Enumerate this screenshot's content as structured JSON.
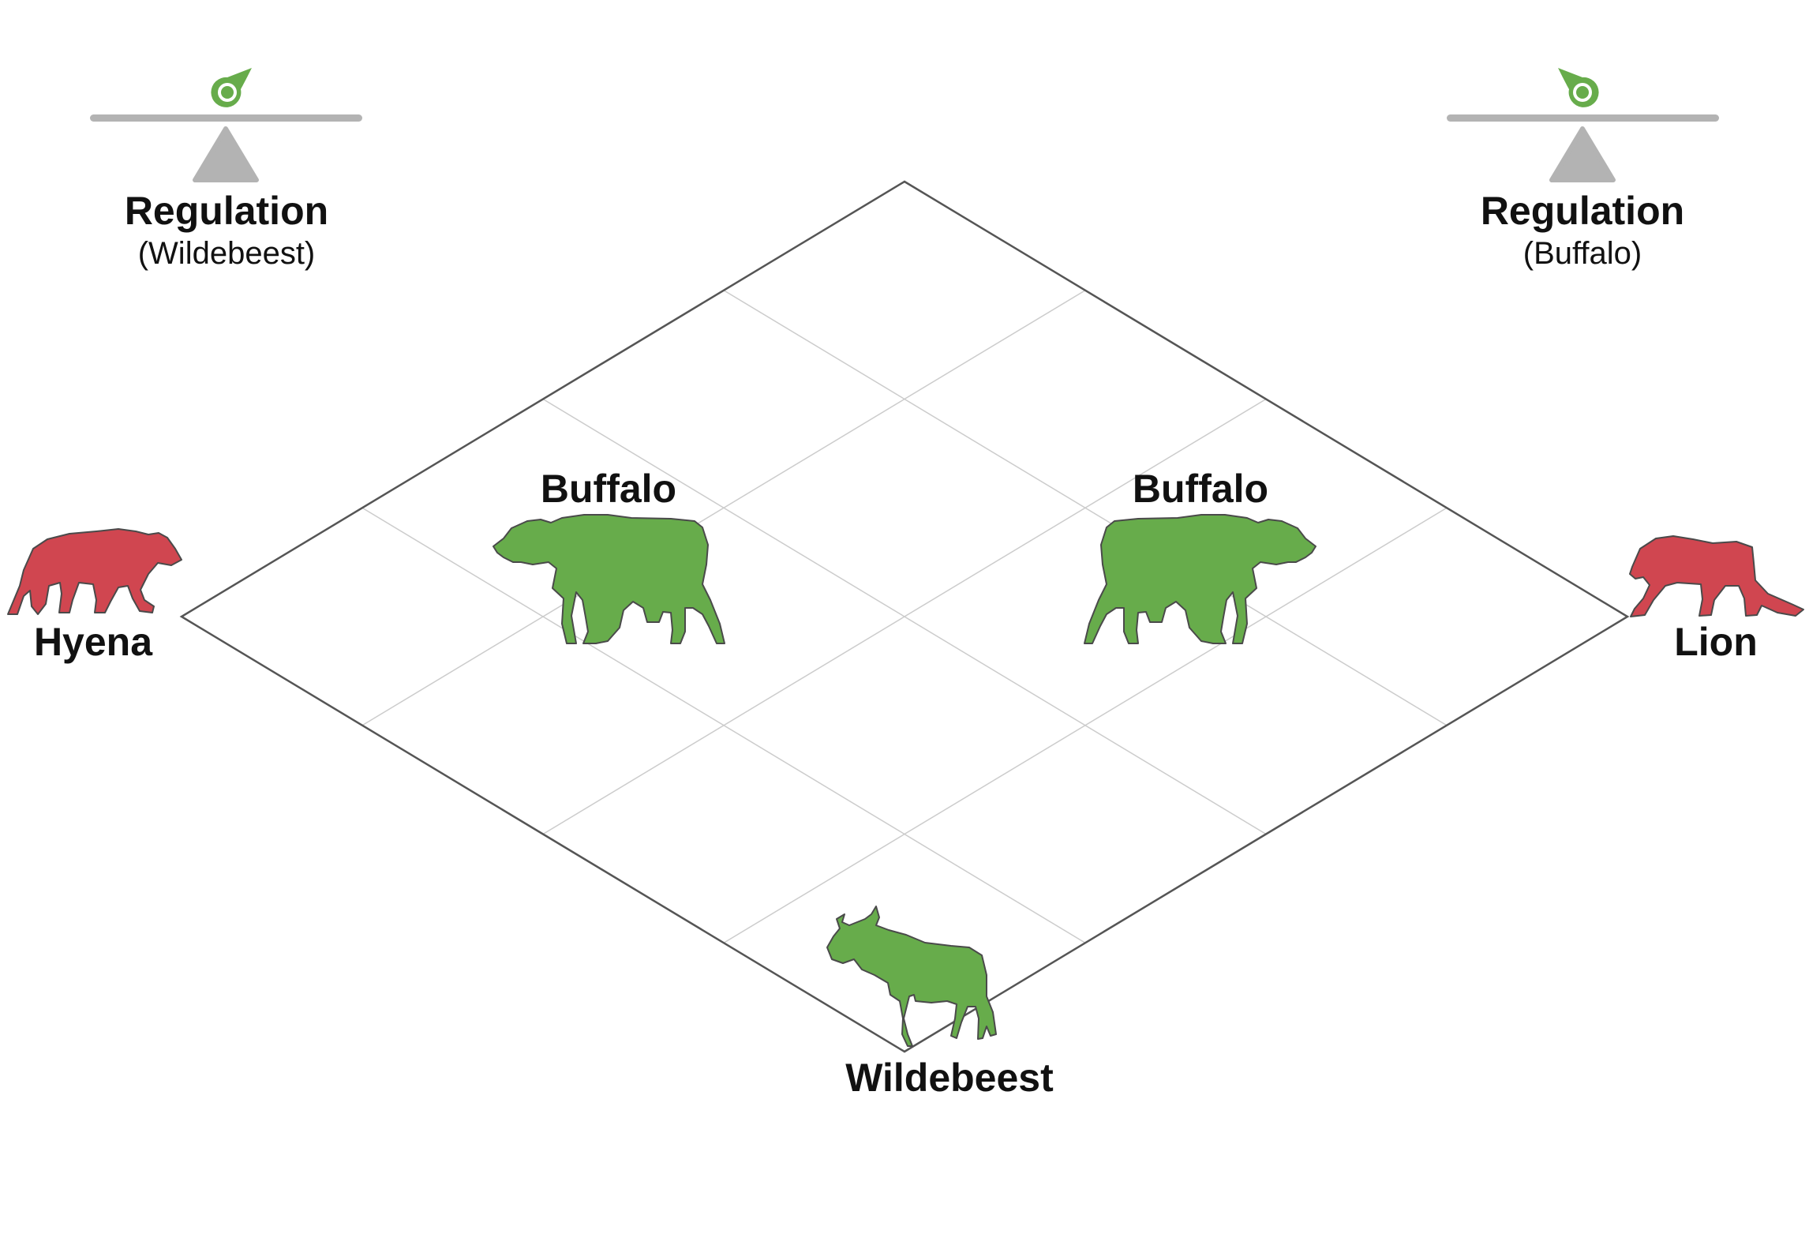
{
  "colors": {
    "predator": "#d04650",
    "prey": "#67ac4b",
    "silhouette_outline": "#4a4a4a",
    "balance": "#b3b3b3",
    "frame": "#555555",
    "grid": "#cccccc",
    "label": "#111111"
  },
  "regulation_left": {
    "title": "Regulation",
    "subtitle": "(Wildebeest)",
    "icon": "balance-scale-icon"
  },
  "regulation_right": {
    "title": "Regulation",
    "subtitle": "(Buffalo)",
    "icon": "balance-scale-icon"
  },
  "nodes": {
    "left": {
      "label": "Hyena",
      "icon": "hyena-icon",
      "role": "predator"
    },
    "right": {
      "label": "Lion",
      "icon": "lion-icon",
      "role": "predator"
    },
    "bottom": {
      "label": "Wildebeest",
      "icon": "wildebeest-icon",
      "role": "prey"
    },
    "inner_left": {
      "label": "Buffalo",
      "icon": "buffalo-icon",
      "role": "prey"
    },
    "inner_right": {
      "label": "Buffalo",
      "icon": "buffalo-icon",
      "role": "prey"
    }
  },
  "grid": {
    "divisions": 4
  }
}
